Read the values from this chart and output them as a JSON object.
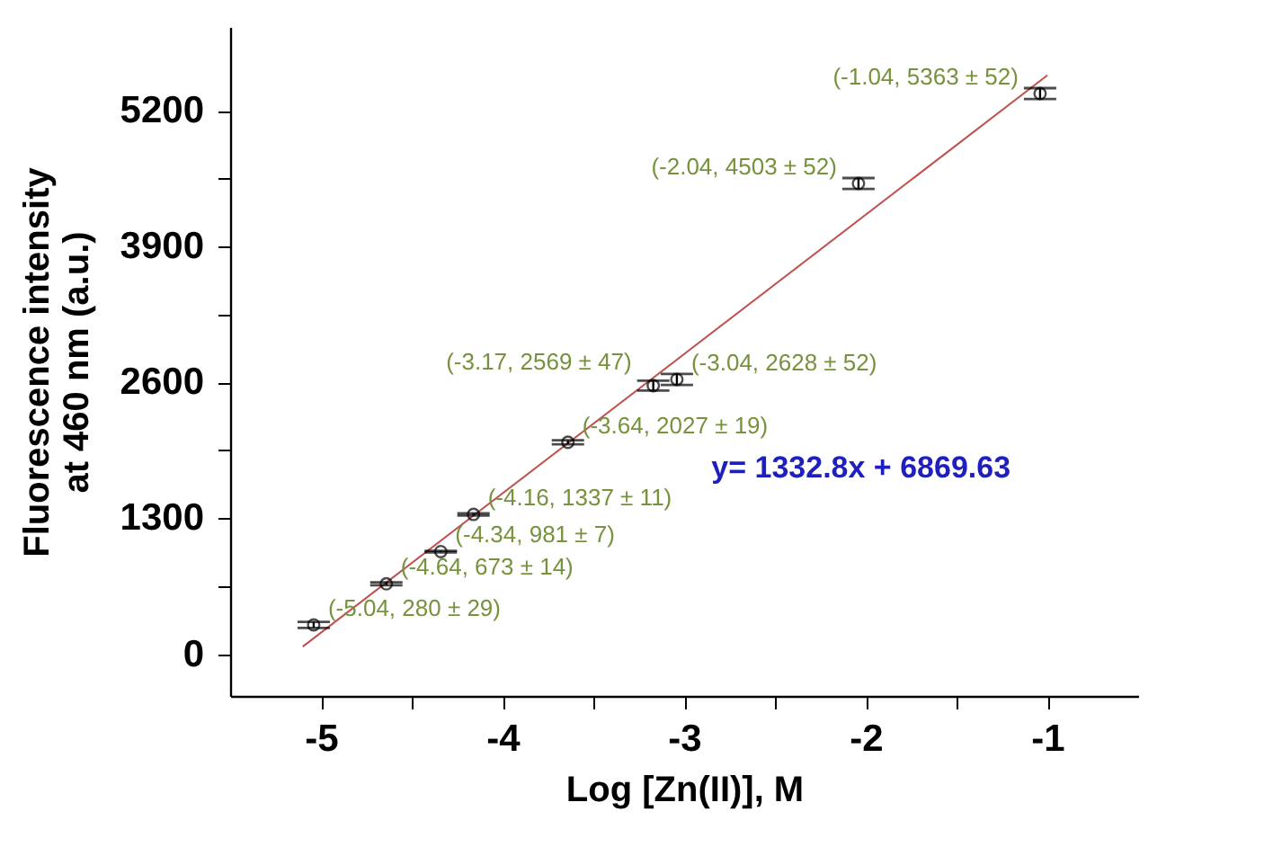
{
  "chart_data": {
    "type": "scatter",
    "xlabel": "Log [Zn(II)], M",
    "ylabel": "Fluorescence intensity\nat 460 nm (a.u.)",
    "xlim": [
      -5.5,
      -0.5
    ],
    "xticks": [
      -5,
      -4,
      -3,
      -2,
      -1
    ],
    "ylim": [
      -400,
      6000
    ],
    "yticks": [
      0,
      1300,
      2600,
      3900,
      5200
    ],
    "grid": false,
    "marker": "circle",
    "series": [
      {
        "color": "#000000",
        "x": [
          -5.04,
          -4.64,
          -4.34,
          -4.16,
          -3.64,
          -3.17,
          -3.04,
          -2.04,
          -1.04
        ],
        "values": [
          280,
          673,
          981,
          1337,
          2027,
          2569,
          2628,
          4503,
          5363
        ],
        "errors": [
          29,
          14,
          7,
          11,
          19,
          47,
          52,
          52,
          52
        ]
      },
      {
        "type": "line",
        "marker": "none",
        "color": "#c0504d",
        "x": [
          -5.1,
          -1.0
        ],
        "values": [
          72,
          5537
        ]
      }
    ],
    "annotations": [
      {
        "text": "(-5.04, 280 ± 29)",
        "x": -5.04,
        "y": 280
      },
      {
        "text": "(-4.64, 673 ± 14)",
        "x": -4.64,
        "y": 673
      },
      {
        "text": "(-4.34, 981 ± 7)",
        "x": -4.34,
        "y": 981
      },
      {
        "text": "(-4.16, 1337 ± 11)",
        "x": -4.16,
        "y": 1337
      },
      {
        "text": "(-3.64, 2027 ± 19)",
        "x": -3.64,
        "y": 2027
      },
      {
        "text": "(-3.17, 2569 ± 47)",
        "x": -3.17,
        "y": 2569
      },
      {
        "text": "(-3.04, 2628 ± 52)",
        "x": -3.04,
        "y": 2628
      },
      {
        "text": "(-2.04, 4503 ± 52)",
        "x": -2.04,
        "y": 4503
      },
      {
        "text": "(-1.04, 5363 ± 52)",
        "x": -1.04,
        "y": 5363
      },
      "y= 1332.8x + 6869.63"
    ]
  }
}
